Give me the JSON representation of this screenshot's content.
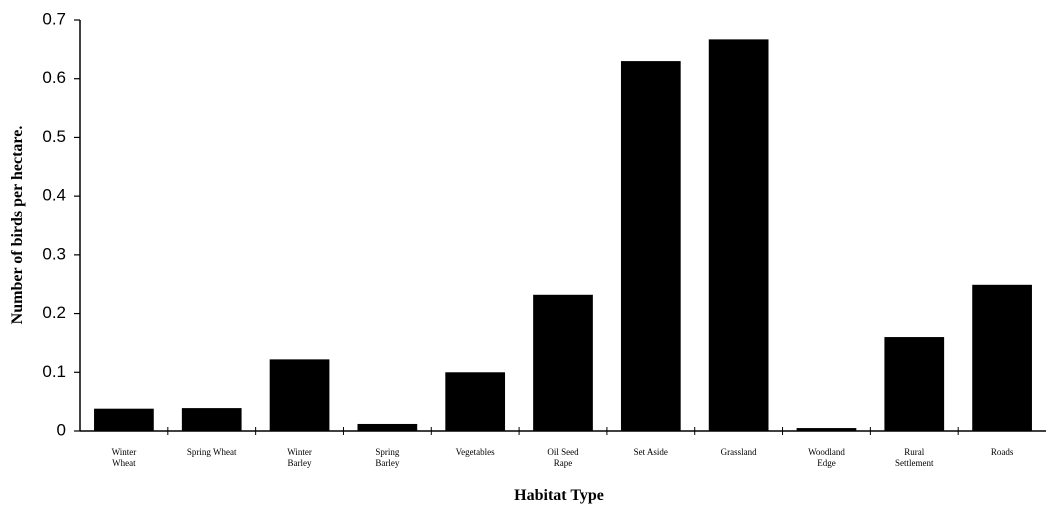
{
  "chart_data": {
    "type": "bar",
    "x_label": "Habitat Type",
    "y_label": "Number of birds per hectare.",
    "categories": [
      "Winter Wheat",
      "Spring Wheat",
      "Winter Barley",
      "Spring Barley",
      "Vegetables",
      "Oil Seed Rape",
      "Set Aside",
      "Grassland",
      "Woodland Edge",
      "Rural Settlement",
      "Roads"
    ],
    "values": [
      0.038,
      0.039,
      0.122,
      0.012,
      0.1,
      0.232,
      0.63,
      0.667,
      0.005,
      0.16,
      0.249
    ],
    "color": "#000000",
    "ylim": [
      0,
      0.7
    ],
    "yticks": [
      0,
      0.1,
      0.2,
      0.3,
      0.4,
      0.5,
      0.6,
      0.7
    ],
    "grid": false
  }
}
